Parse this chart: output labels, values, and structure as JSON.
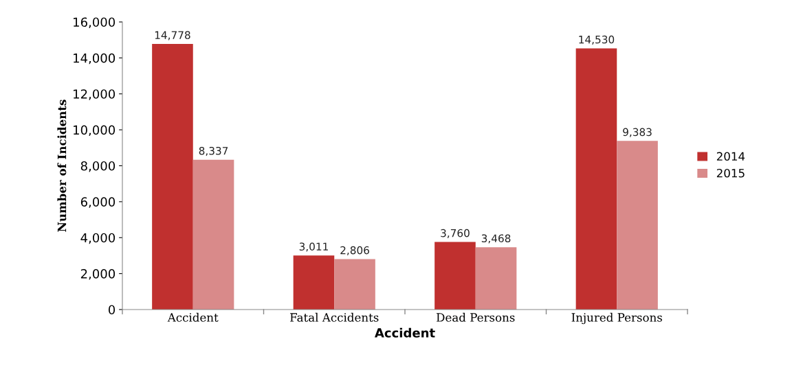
{
  "chart_data": {
    "type": "bar",
    "xlabel": "Accident",
    "ylabel": "Number of Incidents",
    "categories": [
      "Accident",
      "Fatal Accidents",
      "Dead Persons",
      "Injured Persons"
    ],
    "series": [
      {
        "name": "2014",
        "color": "#c0302f",
        "values": [
          14778,
          3011,
          3760,
          14530
        ],
        "value_labels": [
          "14,778",
          "3,011",
          "3,760",
          "14,530"
        ]
      },
      {
        "name": "2015",
        "color": "#d98a8a",
        "values": [
          8337,
          2806,
          3468,
          9383
        ],
        "value_labels": [
          "8,337",
          "2,806",
          "3,468",
          "9,383"
        ]
      }
    ],
    "ylim": [
      0,
      16000
    ],
    "yticks": [
      {
        "value": 0,
        "label": "0"
      },
      {
        "value": 2000,
        "label": "2,000"
      },
      {
        "value": 4000,
        "label": "4,000"
      },
      {
        "value": 6000,
        "label": "6,000"
      },
      {
        "value": 8000,
        "label": "8,000"
      },
      {
        "value": 10000,
        "label": "10,000"
      },
      {
        "value": 12000,
        "label": "12,000"
      },
      {
        "value": 14000,
        "label": "14,000"
      },
      {
        "value": 16000,
        "label": "16,000"
      }
    ],
    "grid": false,
    "legend": "right"
  }
}
